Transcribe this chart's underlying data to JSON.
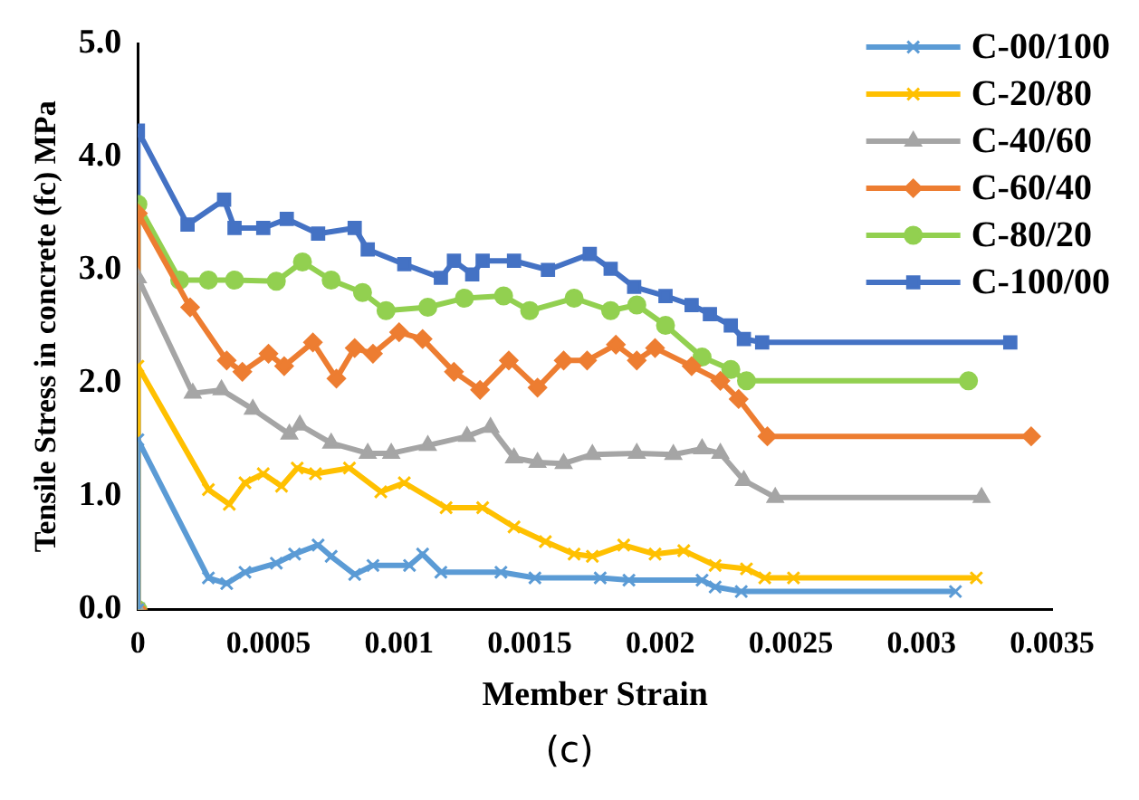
{
  "chart_data": {
    "type": "line",
    "xlabel": "Member Strain",
    "ylabel": "Tensile Stress in concrete (fc) MPa",
    "xlim": [
      0,
      0.0035
    ],
    "xticks": [
      0,
      0.0005,
      0.001,
      0.0015,
      0.002,
      0.0025,
      0.003,
      0.0035
    ],
    "ylim": [
      0,
      5
    ],
    "yticks": [
      {
        "value": 0,
        "label": "0.0"
      },
      {
        "value": 1,
        "label": "1.0"
      },
      {
        "value": 2,
        "label": "2.0"
      },
      {
        "value": 3,
        "label": "3.0"
      },
      {
        "value": 4,
        "label": "4.0"
      },
      {
        "value": 5,
        "label": "5.0"
      }
    ],
    "grid": false,
    "legend": "top right",
    "line_style": "solid",
    "annotations": [
      "(c)"
    ],
    "series": [
      {
        "name": "C-00/100",
        "color": "#5b9bd5",
        "marker": "cross",
        "x": [
          0,
          0,
          0.00027,
          0.00034,
          0.00041,
          0.00053,
          0.0006,
          0.00069,
          0.00074,
          0.00083,
          0.0009,
          0.00104,
          0.00109,
          0.00116,
          0.00139,
          0.00152,
          0.00177,
          0.00188,
          0.00216,
          0.00221,
          0.00231,
          0.00313
        ],
        "values": [
          0,
          1.5,
          0.28,
          0.23,
          0.33,
          0.41,
          0.49,
          0.57,
          0.47,
          0.31,
          0.39,
          0.39,
          0.49,
          0.33,
          0.33,
          0.28,
          0.28,
          0.26,
          0.26,
          0.2,
          0.16,
          0.16
        ]
      },
      {
        "name": "C-20/80",
        "color": "#ffc000",
        "marker": "cross",
        "x": [
          0,
          0,
          0.00027,
          0.00035,
          0.00041,
          0.00048,
          0.00055,
          0.00061,
          0.00068,
          0.00081,
          0.00093,
          0.00102,
          0.00118,
          0.00132,
          0.00144,
          0.00156,
          0.00167,
          0.00174,
          0.00186,
          0.00198,
          0.00209,
          0.00221,
          0.00233,
          0.0024,
          0.00251,
          0.00321
        ],
        "values": [
          0,
          2.15,
          1.06,
          0.93,
          1.12,
          1.2,
          1.09,
          1.25,
          1.2,
          1.25,
          1.04,
          1.12,
          0.9,
          0.9,
          0.73,
          0.6,
          0.49,
          0.47,
          0.57,
          0.49,
          0.52,
          0.39,
          0.36,
          0.28,
          0.28,
          0.28
        ]
      },
      {
        "name": "C-40/60",
        "color": "#a5a5a5",
        "marker": "triangle",
        "x": [
          0,
          0,
          0.00021,
          0.00032,
          0.00044,
          0.00058,
          0.00062,
          0.00074,
          0.00088,
          0.00097,
          0.00111,
          0.00126,
          0.00135,
          0.00144,
          0.00153,
          0.00163,
          0.00174,
          0.00191,
          0.00205,
          0.00216,
          0.00223,
          0.00232,
          0.00244,
          0.00323
        ],
        "values": [
          0,
          2.93,
          1.91,
          1.94,
          1.77,
          1.55,
          1.63,
          1.47,
          1.38,
          1.38,
          1.45,
          1.53,
          1.61,
          1.34,
          1.3,
          1.29,
          1.37,
          1.38,
          1.37,
          1.42,
          1.38,
          1.14,
          0.99,
          0.99
        ]
      },
      {
        "name": "C-60/40",
        "color": "#ed7d31",
        "marker": "diamond",
        "x": [
          0,
          0,
          0.0002,
          0.00034,
          0.0004,
          0.0005,
          0.00056,
          0.00067,
          0.00076,
          0.00083,
          0.0009,
          0.001,
          0.00109,
          0.00121,
          0.00131,
          0.00142,
          0.00153,
          0.00163,
          0.00172,
          0.00183,
          0.00191,
          0.00198,
          0.00212,
          0.00223,
          0.0023,
          0.00241,
          0.00342
        ],
        "values": [
          0,
          3.5,
          2.67,
          2.2,
          2.1,
          2.26,
          2.15,
          2.36,
          2.04,
          2.31,
          2.26,
          2.45,
          2.39,
          2.1,
          1.94,
          2.2,
          1.96,
          2.2,
          2.2,
          2.34,
          2.2,
          2.31,
          2.15,
          2.02,
          1.86,
          1.53,
          1.53
        ]
      },
      {
        "name": "C-80/20",
        "color": "#92d050",
        "marker": "circle",
        "x": [
          0,
          0,
          0.00016,
          0.00027,
          0.00037,
          0.00053,
          0.00063,
          0.00074,
          0.00086,
          0.00095,
          0.00111,
          0.00125,
          0.0014,
          0.0015,
          0.00167,
          0.00181,
          0.00191,
          0.00202,
          0.00216,
          0.00227,
          0.00233,
          0.00318
        ],
        "values": [
          0,
          3.58,
          2.91,
          2.91,
          2.91,
          2.9,
          3.07,
          2.91,
          2.8,
          2.64,
          2.67,
          2.75,
          2.77,
          2.64,
          2.75,
          2.64,
          2.69,
          2.51,
          2.23,
          2.12,
          2.02,
          2.02
        ]
      },
      {
        "name": "C-100/00",
        "color": "#4472c4",
        "marker": "square",
        "x": [
          0,
          0,
          0.00019,
          0.00033,
          0.00037,
          0.00048,
          0.00057,
          0.00069,
          0.00083,
          0.00088,
          0.00102,
          0.00116,
          0.00121,
          0.00128,
          0.00132,
          0.00144,
          0.00157,
          0.00173,
          0.00181,
          0.0019,
          0.00202,
          0.00212,
          0.00219,
          0.00227,
          0.00232,
          0.00239,
          0.00334
        ],
        "values": [
          0,
          4.23,
          3.4,
          3.62,
          3.37,
          3.37,
          3.45,
          3.32,
          3.37,
          3.18,
          3.05,
          2.93,
          3.08,
          2.96,
          3.08,
          3.08,
          3.0,
          3.14,
          3.01,
          2.85,
          2.77,
          2.69,
          2.61,
          2.51,
          2.39,
          2.36,
          2.36
        ]
      }
    ]
  }
}
